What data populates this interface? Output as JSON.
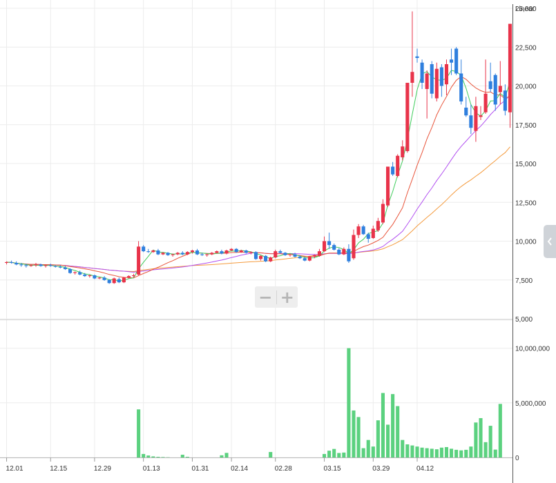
{
  "scale_label": "Linear",
  "zoom": {
    "minus": "−",
    "plus": "+"
  },
  "side_tab_icon": "chevron-left-icon",
  "colors": {
    "up": "#e8334a",
    "down": "#2f7fde",
    "volume": "#5bd17f",
    "ma5": "#3dcc5a",
    "ma20": "#e8543a",
    "ma60": "#b24ff0",
    "ma120": "#f49a3c",
    "grid": "#ececec"
  },
  "chart_data": [
    {
      "type": "candlestick",
      "y_axis_side": "right",
      "ylim": [
        5000,
        25000
      ],
      "yticks": [
        "25,000",
        "22,500",
        "20,000",
        "17,500",
        "15,000",
        "12,500",
        "10,000",
        "7,500",
        "5,000"
      ],
      "ytick_values": [
        25000,
        22500,
        20000,
        17500,
        15000,
        12500,
        10000,
        7500,
        5000
      ],
      "candles": [
        [
          8600,
          8700,
          8500,
          8650
        ],
        [
          8650,
          8750,
          8550,
          8600
        ],
        [
          8600,
          8700,
          8450,
          8500
        ],
        [
          8500,
          8600,
          8350,
          8450
        ],
        [
          8450,
          8550,
          8300,
          8400
        ],
        [
          8400,
          8500,
          8350,
          8450
        ],
        [
          8450,
          8600,
          8350,
          8500
        ],
        [
          8500,
          8550,
          8350,
          8400
        ],
        [
          8400,
          8500,
          8300,
          8450
        ],
        [
          8450,
          8550,
          8350,
          8400
        ],
        [
          8400,
          8450,
          8300,
          8350
        ],
        [
          8350,
          8450,
          8250,
          8300
        ],
        [
          8300,
          8400,
          8150,
          8200
        ],
        [
          8200,
          8250,
          7900,
          7950
        ],
        [
          7950,
          8050,
          7850,
          8000
        ],
        [
          8000,
          8100,
          7800,
          7850
        ],
        [
          7850,
          7950,
          7700,
          7750
        ],
        [
          7750,
          7850,
          7650,
          7800
        ],
        [
          7800,
          7850,
          7550,
          7600
        ],
        [
          7600,
          7700,
          7550,
          7650
        ],
        [
          7650,
          7750,
          7450,
          7500
        ],
        [
          7500,
          7550,
          7250,
          7300
        ],
        [
          7300,
          7650,
          7250,
          7600
        ],
        [
          7550,
          7650,
          7300,
          7350
        ],
        [
          7350,
          7700,
          7300,
          7650
        ],
        [
          7650,
          7800,
          7600,
          7750
        ],
        [
          7750,
          7900,
          7650,
          7800
        ],
        [
          7850,
          10000,
          7800,
          9650
        ],
        [
          9650,
          9750,
          9300,
          9350
        ],
        [
          9350,
          9500,
          9250,
          9300
        ],
        [
          9300,
          9450,
          9250,
          9400
        ],
        [
          9400,
          9500,
          9100,
          9150
        ],
        [
          9150,
          9300,
          9100,
          9250
        ],
        [
          9250,
          9300,
          9050,
          9100
        ],
        [
          9100,
          9200,
          9000,
          9150
        ],
        [
          9150,
          9300,
          9100,
          9250
        ],
        [
          9250,
          9350,
          9100,
          9150
        ],
        [
          9150,
          9350,
          9100,
          9300
        ],
        [
          9300,
          9450,
          9200,
          9400
        ],
        [
          9400,
          9500,
          9100,
          9150
        ],
        [
          9150,
          9250,
          9050,
          9100
        ],
        [
          9100,
          9200,
          9000,
          9150
        ],
        [
          9150,
          9300,
          9100,
          9250
        ],
        [
          9250,
          9400,
          9200,
          9350
        ],
        [
          9350,
          9450,
          9150,
          9200
        ],
        [
          9200,
          9450,
          9150,
          9400
        ],
        [
          9400,
          9550,
          9350,
          9500
        ],
        [
          9500,
          9550,
          9250,
          9300
        ],
        [
          9300,
          9450,
          9250,
          9400
        ],
        [
          9400,
          9450,
          9200,
          9250
        ],
        [
          9250,
          9350,
          9150,
          9300
        ],
        [
          9300,
          9350,
          8800,
          8850
        ],
        [
          8850,
          9100,
          8750,
          9050
        ],
        [
          9050,
          9100,
          8650,
          8700
        ],
        [
          8700,
          9000,
          8650,
          8950
        ],
        [
          8950,
          9450,
          8900,
          9350
        ],
        [
          9350,
          9450,
          9200,
          9250
        ],
        [
          9250,
          9300,
          9050,
          9100
        ],
        [
          9100,
          9200,
          9000,
          9150
        ],
        [
          9150,
          9250,
          8950,
          9000
        ],
        [
          9000,
          9100,
          8850,
          8900
        ],
        [
          8900,
          9000,
          8700,
          8750
        ],
        [
          8750,
          9050,
          8700,
          9000
        ],
        [
          9000,
          9150,
          8900,
          9100
        ],
        [
          9050,
          9500,
          9000,
          9350
        ],
        [
          9350,
          10300,
          9300,
          10000
        ],
        [
          10000,
          10550,
          9500,
          9750
        ],
        [
          9750,
          9850,
          9400,
          9450
        ],
        [
          9450,
          9550,
          9100,
          9150
        ],
        [
          9150,
          9600,
          9100,
          9500
        ],
        [
          9500,
          9800,
          8600,
          8700
        ],
        [
          8900,
          10750,
          8800,
          10400
        ],
        [
          10400,
          11100,
          10200,
          10950
        ],
        [
          10950,
          11050,
          10400,
          10450
        ],
        [
          10450,
          10550,
          9900,
          10150
        ],
        [
          10200,
          11000,
          10150,
          10800
        ],
        [
          10700,
          11500,
          10600,
          11300
        ],
        [
          11200,
          12700,
          11100,
          12400
        ],
        [
          12300,
          14800,
          12200,
          14800
        ],
        [
          14800,
          15100,
          14200,
          14300
        ],
        [
          14200,
          15600,
          14100,
          15500
        ],
        [
          15400,
          16500,
          15200,
          16100
        ],
        [
          15800,
          20200,
          15700,
          20200
        ],
        [
          20200,
          24800,
          19300,
          20900
        ],
        [
          21900,
          22400,
          21500,
          21800
        ],
        [
          21500,
          21700,
          19800,
          20200
        ],
        [
          19800,
          21000,
          17900,
          20800
        ],
        [
          21400,
          21600,
          19200,
          19500
        ],
        [
          19200,
          21500,
          19000,
          21100
        ],
        [
          21200,
          21400,
          19300,
          20000
        ],
        [
          20100,
          21700,
          19400,
          21400
        ],
        [
          21700,
          22400,
          20700,
          21500
        ],
        [
          22400,
          22500,
          20700,
          20800
        ],
        [
          20800,
          21700,
          18800,
          19000
        ],
        [
          18600,
          19300,
          18000,
          18100
        ],
        [
          18100,
          18800,
          16900,
          17300
        ],
        [
          17100,
          19300,
          16400,
          18700
        ],
        [
          18000,
          18700,
          17800,
          18100
        ],
        [
          18300,
          21700,
          18200,
          19500
        ],
        [
          20300,
          21500,
          19600,
          19800
        ],
        [
          20700,
          20800,
          18400,
          18800
        ],
        [
          19600,
          21600,
          18800,
          20000
        ],
        [
          19700,
          20100,
          18100,
          18400
        ],
        [
          18300,
          24000,
          17300,
          24000
        ]
      ],
      "volume_ylim": [
        0,
        12500000
      ],
      "volume_yticks": [
        "10,000,000",
        "5,000,000",
        "0"
      ],
      "volume_ytick_values": [
        10000000,
        5000000,
        0
      ],
      "volume": [
        0,
        0,
        0,
        0,
        0,
        0,
        0,
        0,
        0,
        0,
        0,
        0,
        0,
        0,
        0,
        0,
        0,
        0,
        0,
        0,
        0,
        0,
        0,
        0,
        0,
        0,
        0,
        4400000,
        320000,
        180000,
        100000,
        60000,
        40000,
        20000,
        0,
        0,
        250000,
        60000,
        0,
        0,
        0,
        0,
        0,
        0,
        200000,
        420000,
        0,
        0,
        0,
        0,
        0,
        0,
        0,
        0,
        500000,
        0,
        0,
        0,
        0,
        0,
        0,
        0,
        0,
        0,
        0,
        320000,
        620000,
        780000,
        410000,
        450000,
        10000000,
        4300000,
        3700000,
        850000,
        1600000,
        1000000,
        3400000,
        5900000,
        3000000,
        5800000,
        4700000,
        1600000,
        1200000,
        1100000,
        1000000,
        900000,
        850000,
        800000,
        750000,
        900000,
        950000,
        800000,
        700000,
        650000,
        700000,
        1000000,
        3200000,
        3600000,
        1400000,
        2900000,
        720000,
        4900000
      ],
      "xticks": [
        {
          "label": "12.01",
          "index": 0
        },
        {
          "label": "12.15",
          "index": 9
        },
        {
          "label": "12.29",
          "index": 18
        },
        {
          "label": "01.13",
          "index": 28
        },
        {
          "label": "01.31",
          "index": 38
        },
        {
          "label": "02.14",
          "index": 46
        },
        {
          "label": "02.28",
          "index": 55
        },
        {
          "label": "03.15",
          "index": 65
        },
        {
          "label": "03.29",
          "index": 75
        },
        {
          "label": "04.12",
          "index": 84
        }
      ],
      "grid": true
    }
  ]
}
